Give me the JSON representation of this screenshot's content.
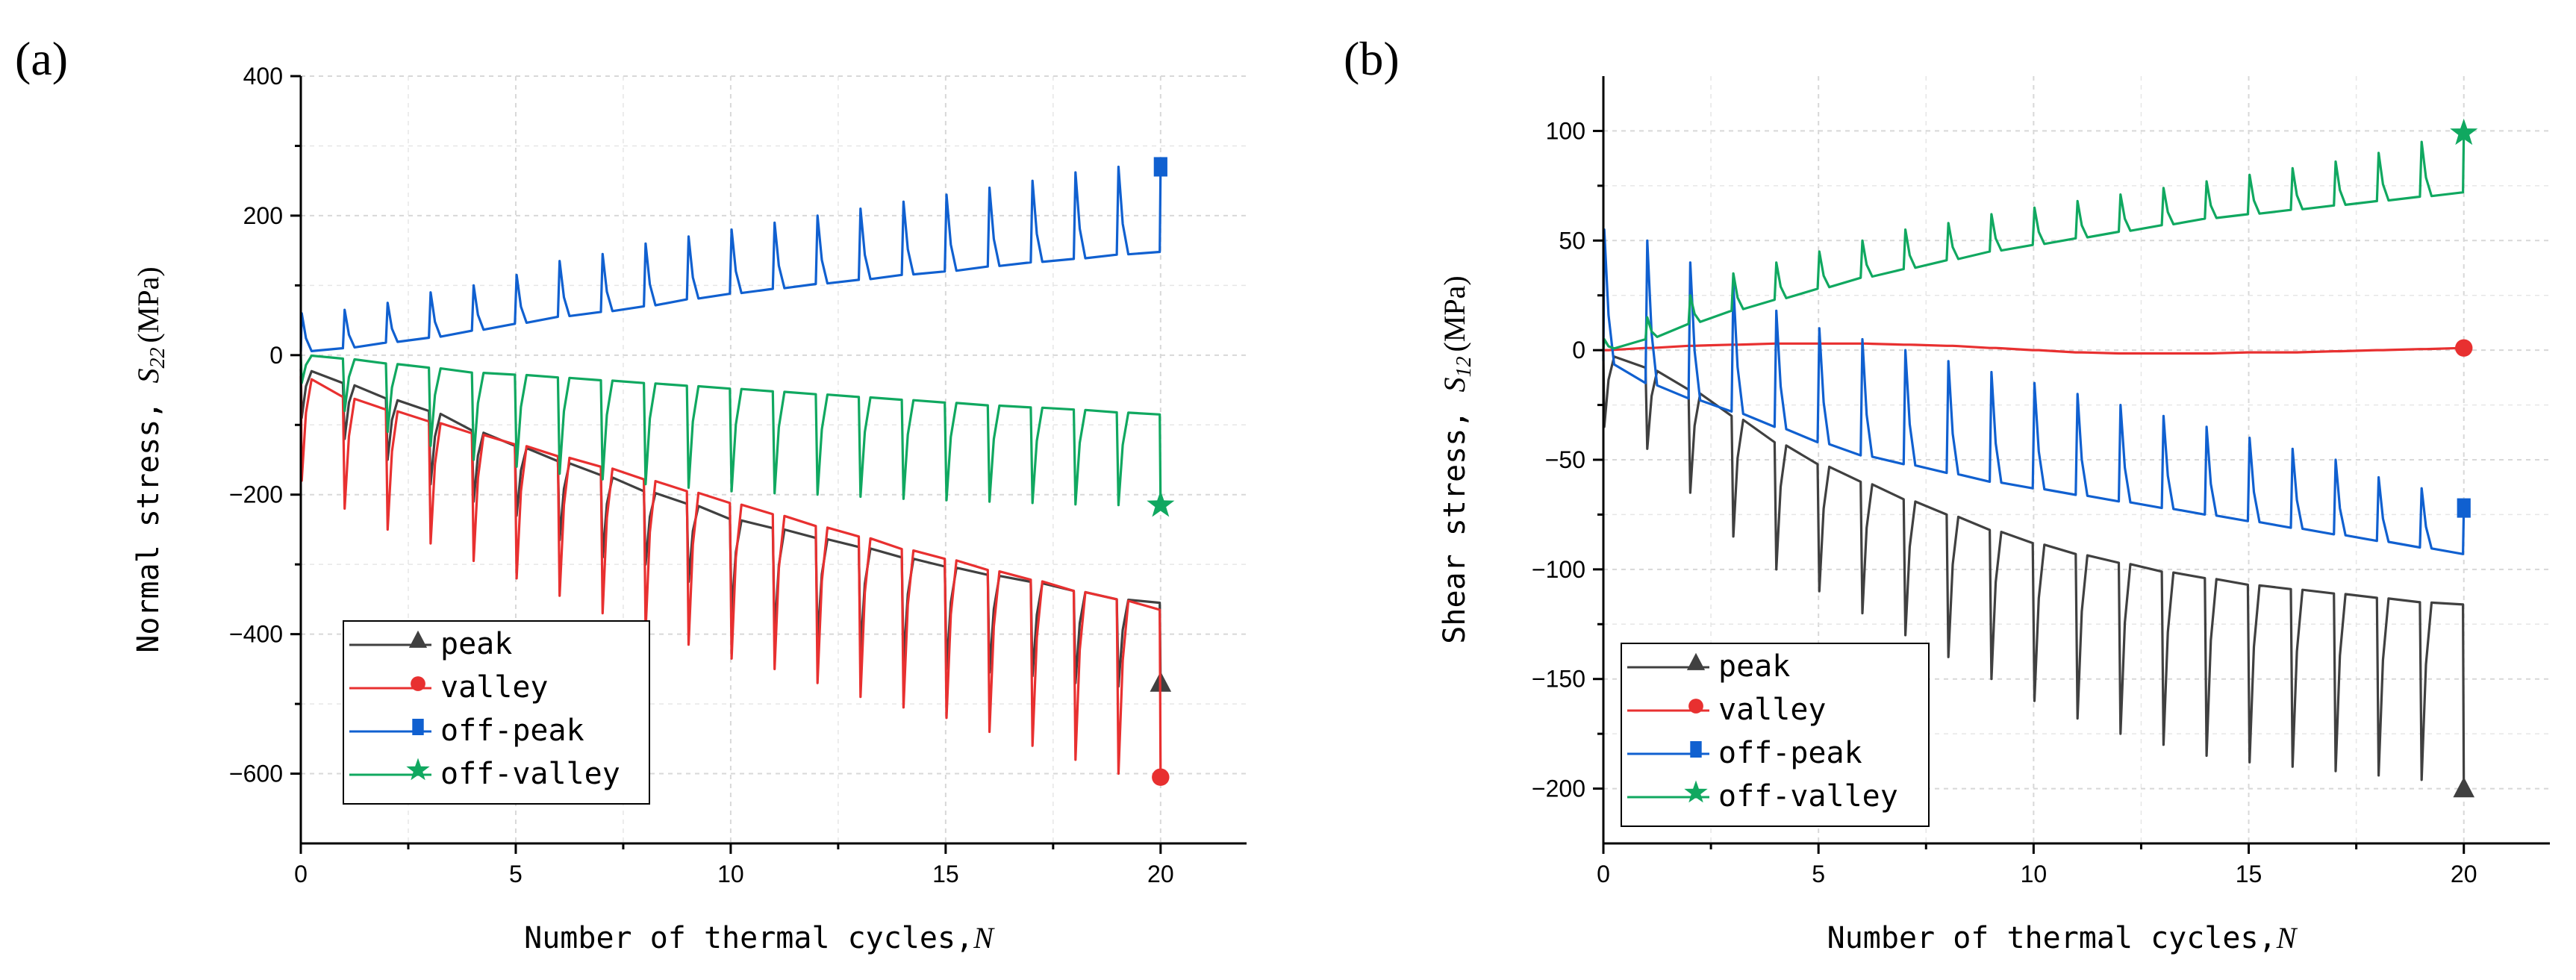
{
  "chart_data": [
    {
      "panel": "(a)",
      "type": "line",
      "xlabel": "Number of thermal cycles,",
      "xlabel_var": "N",
      "ylabel": "Normal stress,",
      "ylabel_var": "S",
      "ylabel_sub": "22",
      "ylabel_unit": "(MPa)",
      "xlim": [
        0,
        22
      ],
      "ylim": [
        -700,
        400
      ],
      "xticks": [
        0,
        5,
        10,
        15,
        20
      ],
      "yticks": [
        -600,
        -400,
        -200,
        0,
        200,
        400
      ],
      "grid": true,
      "legend_position": "bottom-left",
      "series": [
        {
          "name": "peak",
          "color": "#404040",
          "marker": "triangle",
          "base": [
            -20,
            -40,
            -62,
            -80,
            -108,
            -130,
            -152,
            -172,
            -195,
            -213,
            -235,
            -248,
            -262,
            -275,
            -290,
            -303,
            -315,
            -325,
            -338,
            -350,
            -355
          ],
          "spike": [
            -90,
            -120,
            -150,
            -185,
            -210,
            -230,
            -265,
            -290,
            -300,
            -325,
            -370,
            -400,
            -410,
            -425,
            -440,
            -450,
            -455,
            -460,
            -470,
            -475
          ],
          "end_marker": [
            20,
            -470
          ]
        },
        {
          "name": "valley",
          "color": "#e83030",
          "marker": "circle",
          "base": [
            -30,
            -60,
            -78,
            -95,
            -112,
            -128,
            -145,
            -160,
            -178,
            -195,
            -212,
            -228,
            -245,
            -260,
            -278,
            -292,
            -308,
            -322,
            -338,
            -350,
            -365
          ],
          "spike": [
            -180,
            -220,
            -250,
            -270,
            -295,
            -320,
            -345,
            -370,
            -395,
            -415,
            -435,
            -450,
            -470,
            -490,
            -505,
            -520,
            -540,
            -560,
            -580,
            -600
          ],
          "end_marker": [
            20,
            -605
          ]
        },
        {
          "name": "off-peak",
          "color": "#1060d0",
          "marker": "square",
          "base": [
            5,
            10,
            18,
            25,
            35,
            45,
            55,
            62,
            70,
            80,
            88,
            95,
            102,
            108,
            115,
            120,
            127,
            133,
            138,
            144,
            148
          ],
          "spike": [
            60,
            65,
            75,
            90,
            100,
            115,
            135,
            145,
            160,
            170,
            180,
            190,
            200,
            210,
            220,
            230,
            240,
            250,
            262,
            270
          ],
          "end_marker": [
            20,
            270
          ]
        },
        {
          "name": "off-valley",
          "color": "#10a860",
          "marker": "star",
          "base": [
            0,
            -5,
            -12,
            -18,
            -25,
            -28,
            -32,
            -36,
            -40,
            -44,
            -48,
            -52,
            -56,
            -60,
            -64,
            -68,
            -72,
            -75,
            -78,
            -82,
            -85
          ],
          "spike": [
            -40,
            -80,
            -110,
            -130,
            -150,
            -160,
            -170,
            -178,
            -185,
            -190,
            -195,
            -198,
            -200,
            -203,
            -206,
            -208,
            -210,
            -212,
            -214,
            -215
          ],
          "end_marker": [
            20,
            -215
          ]
        }
      ]
    },
    {
      "panel": "(b)",
      "type": "line",
      "xlabel": "Number of thermal cycles,",
      "xlabel_var": "N",
      "ylabel": "Shear stress,",
      "ylabel_var": "S",
      "ylabel_sub": "12",
      "ylabel_unit": "(MPa)",
      "xlim": [
        0,
        22
      ],
      "ylim": [
        -225,
        125
      ],
      "xticks": [
        0,
        5,
        10,
        15,
        20
      ],
      "yticks": [
        -200,
        -150,
        -100,
        -50,
        0,
        50,
        100
      ],
      "grid": true,
      "legend_position": "bottom-left",
      "series": [
        {
          "name": "peak",
          "color": "#404040",
          "marker": "triangle",
          "base": [
            -2,
            -8,
            -18,
            -30,
            -42,
            -52,
            -60,
            -68,
            -75,
            -82,
            -88,
            -93,
            -97,
            -101,
            -104,
            -107,
            -109,
            -111,
            -113,
            -115,
            -116
          ],
          "spike": [
            -35,
            -45,
            -65,
            -85,
            -100,
            -110,
            -120,
            -130,
            -140,
            -150,
            -160,
            -168,
            -175,
            -180,
            -185,
            -188,
            -190,
            -192,
            -194,
            -196
          ],
          "end_marker": [
            20,
            -200
          ]
        },
        {
          "name": "valley",
          "color": "#e83030",
          "marker": "circle",
          "base": [
            0,
            1,
            2,
            2.5,
            3,
            3,
            3,
            2.5,
            2,
            1,
            0,
            -1,
            -1.5,
            -1.5,
            -1.5,
            -1,
            -1,
            -0.5,
            0,
            0.5,
            1
          ],
          "spike": [
            0,
            1,
            2,
            2.5,
            3,
            3,
            3,
            2.5,
            2,
            1,
            0,
            -1,
            -1.5,
            -1.5,
            -1.5,
            -1,
            -1,
            -0.5,
            0,
            0.5
          ],
          "end_marker": [
            20,
            1
          ]
        },
        {
          "name": "off-peak",
          "color": "#1060d0",
          "marker": "square",
          "base": [
            -5,
            -15,
            -22,
            -28,
            -35,
            -42,
            -48,
            -52,
            -56,
            -60,
            -63,
            -66,
            -69,
            -72,
            -75,
            -78,
            -81,
            -84,
            -87,
            -90,
            -93
          ],
          "spike": [
            55,
            50,
            40,
            30,
            18,
            10,
            5,
            0,
            -5,
            -10,
            -15,
            -20,
            -25,
            -30,
            -35,
            -40,
            -45,
            -50,
            -58,
            -63
          ],
          "end_marker": [
            20,
            -72
          ]
        },
        {
          "name": "off-valley",
          "color": "#10a860",
          "marker": "star",
          "base": [
            0,
            5,
            12,
            18,
            23,
            28,
            33,
            37,
            41,
            45,
            48,
            51,
            54,
            57,
            60,
            62,
            64,
            66,
            68,
            70,
            72
          ],
          "spike": [
            5,
            15,
            25,
            35,
            40,
            45,
            50,
            55,
            58,
            62,
            65,
            68,
            71,
            74,
            77,
            80,
            83,
            86,
            90,
            95
          ],
          "end_marker": [
            20,
            99
          ]
        }
      ]
    }
  ]
}
